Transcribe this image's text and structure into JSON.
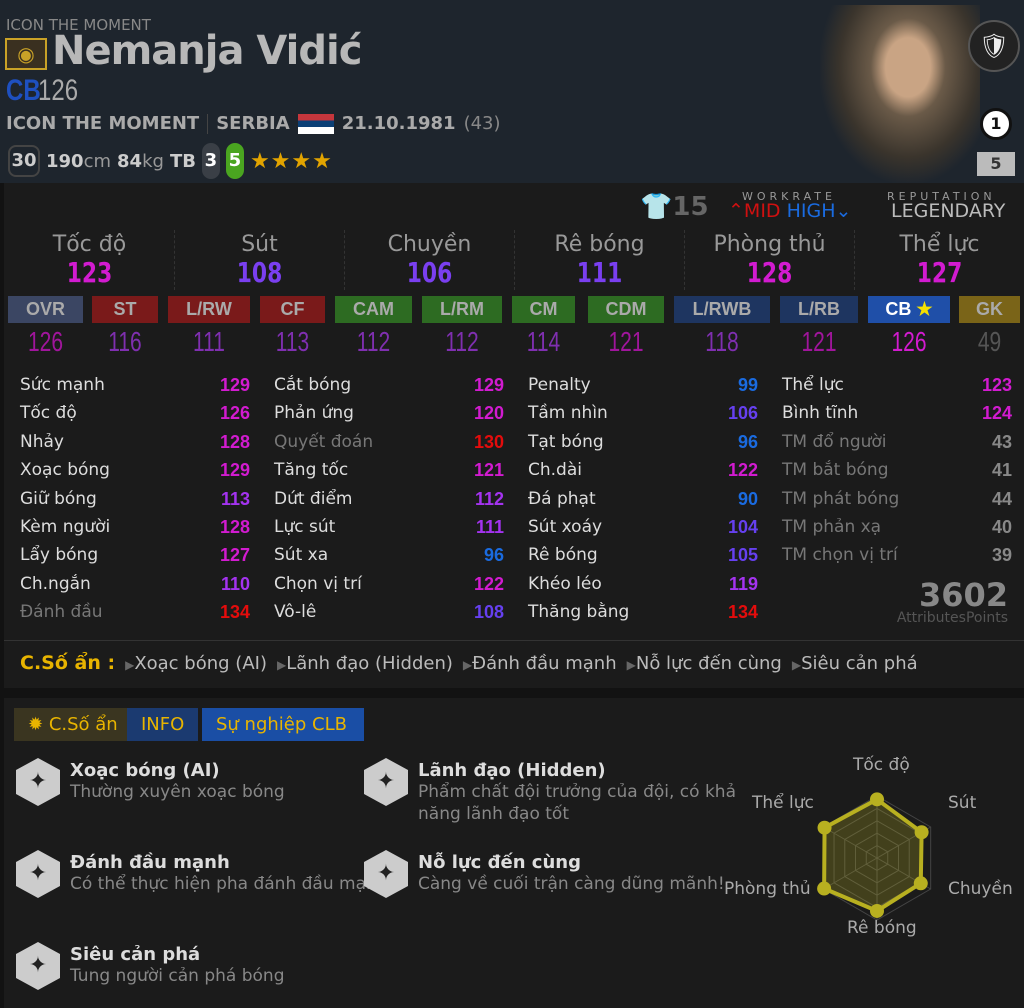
{
  "header": {
    "season_label": "ICON THE MOMENT",
    "name": "Nemanja Vidić",
    "position": "CB",
    "ovr": "126",
    "season": "ICON THE MOMENT",
    "nation": "SERBIA",
    "dob": "21.10.1981",
    "age": "(43)",
    "level": "30",
    "height": "190",
    "height_unit": "cm",
    "weight": "84",
    "weight_unit": "kg",
    "body": "TB",
    "left_foot": "3",
    "right_foot": "5",
    "skill_stars": 4,
    "rank": "1",
    "enhance": "5"
  },
  "info": {
    "jersey": "15",
    "workrate_label": "WORKRATE",
    "workrate_att": "MID",
    "workrate_def": "HIGH",
    "reputation_label": "REPUTATION",
    "reputation": "LEGENDARY"
  },
  "groups": [
    {
      "label": "Tốc độ",
      "value": "123"
    },
    {
      "label": "Sút",
      "value": "108"
    },
    {
      "label": "Chuyền",
      "value": "106"
    },
    {
      "label": "Rê bóng",
      "value": "111"
    },
    {
      "label": "Phòng thủ",
      "value": "128"
    },
    {
      "label": "Thể lực",
      "value": "127"
    }
  ],
  "positions": [
    {
      "label": "OVR",
      "value": "126",
      "color": "#3b4663"
    },
    {
      "label": "ST",
      "value": "116",
      "color": "#7a1a1a"
    },
    {
      "label": "L/RW",
      "value": "111",
      "color": "#7a1a1a"
    },
    {
      "label": "CF",
      "value": "113",
      "color": "#7a1a1a"
    },
    {
      "label": "CAM",
      "value": "112",
      "color": "#2d6b22"
    },
    {
      "label": "L/RM",
      "value": "112",
      "color": "#2d6b22"
    },
    {
      "label": "CM",
      "value": "114",
      "color": "#2d6b22"
    },
    {
      "label": "CDM",
      "value": "121",
      "color": "#2d6b22"
    },
    {
      "label": "L/RWB",
      "value": "118",
      "color": "#1e3560"
    },
    {
      "label": "L/RB",
      "value": "121",
      "color": "#1e3560"
    },
    {
      "label": "CB",
      "value": "126",
      "color": "#1f4fa8"
    },
    {
      "label": "GK",
      "value": "49",
      "color": "#7a6418"
    }
  ],
  "stats": [
    [
      {
        "label": "Sức mạnh",
        "value": "129"
      },
      {
        "label": "Tốc độ",
        "value": "126"
      },
      {
        "label": "Nhảy",
        "value": "128"
      },
      {
        "label": "Xoạc bóng",
        "value": "129"
      },
      {
        "label": "Giữ bóng",
        "value": "113"
      },
      {
        "label": "Kèm người",
        "value": "128"
      },
      {
        "label": "Lẩy bóng",
        "value": "127"
      },
      {
        "label": "Ch.ngắn",
        "value": "110"
      },
      {
        "label": "Đánh đầu",
        "value": "134",
        "hidden": true
      }
    ],
    [
      {
        "label": "Cắt bóng",
        "value": "129"
      },
      {
        "label": "Phản ứng",
        "value": "120"
      },
      {
        "label": "Quyết đoán",
        "value": "130",
        "hidden": true
      },
      {
        "label": "Tăng tốc",
        "value": "121"
      },
      {
        "label": "Dứt điểm",
        "value": "112"
      },
      {
        "label": "Lực sút",
        "value": "111"
      },
      {
        "label": "Sút xa",
        "value": "96"
      },
      {
        "label": "Chọn vị trí",
        "value": "122"
      },
      {
        "label": "Vô-lê",
        "value": "108"
      }
    ],
    [
      {
        "label": "Penalty",
        "value": "99"
      },
      {
        "label": "Tầm nhìn",
        "value": "106"
      },
      {
        "label": "Tạt bóng",
        "value": "96"
      },
      {
        "label": "Ch.dài",
        "value": "122"
      },
      {
        "label": "Đá phạt",
        "value": "90"
      },
      {
        "label": "Sút xoáy",
        "value": "104"
      },
      {
        "label": "Rê bóng",
        "value": "105"
      },
      {
        "label": "Khéo léo",
        "value": "119"
      },
      {
        "label": "Thăng bằng",
        "value": "134"
      }
    ],
    [
      {
        "label": "Thể lực",
        "value": "123"
      },
      {
        "label": "Bình tĩnh",
        "value": "124"
      },
      {
        "label": "TM đổ người",
        "value": "43",
        "gk": true
      },
      {
        "label": "TM bắt bóng",
        "value": "41",
        "gk": true
      },
      {
        "label": "TM phát bóng",
        "value": "44",
        "gk": true
      },
      {
        "label": "TM phản xạ",
        "value": "40",
        "gk": true
      },
      {
        "label": "TM chọn vị trí",
        "value": "39",
        "gk": true
      }
    ]
  ],
  "total": {
    "value": "3602",
    "label": "AttributesPoints"
  },
  "hidden_traits": {
    "label": "C.Số ẩn :",
    "items": [
      "Xoạc bóng (AI)",
      "Lãnh đạo (Hidden)",
      "Đánh đầu mạnh",
      "Nỗ lực đến cùng",
      "Siêu cản phá"
    ]
  },
  "tabs": [
    "C.Số ẩn",
    "INFO",
    "Sự nghiệp CLB"
  ],
  "traits": [
    {
      "title": "Xoạc bóng (AI)",
      "desc": "Thường xuyên xoạc bóng",
      "icon": "snake-icon"
    },
    {
      "title": "Lãnh đạo (Hidden)",
      "desc": "Phẩm chất đội trưởng của đội, có khả năng lãnh đạo tốt",
      "icon": "star-chevron-icon"
    },
    {
      "title": "Đánh đầu mạnh",
      "desc": "Có thể thực hiện pha đánh đầu mạnh",
      "icon": "buffalo-icon"
    },
    {
      "title": "Nỗ lực đến cùng",
      "desc": "Càng về cuối trận càng dũng mãnh!",
      "icon": "lungs-icon"
    },
    {
      "title": "Siêu cản phá",
      "desc": "Tung người cản phá bóng",
      "icon": "block-ball-icon"
    }
  ],
  "chart_data": {
    "type": "radar",
    "categories": [
      "Tốc độ",
      "Sút",
      "Chuyền",
      "Rê bóng",
      "Phòng thủ",
      "Thể lực"
    ],
    "values": [
      123,
      108,
      106,
      111,
      128,
      127
    ],
    "color": "#b8b020"
  }
}
